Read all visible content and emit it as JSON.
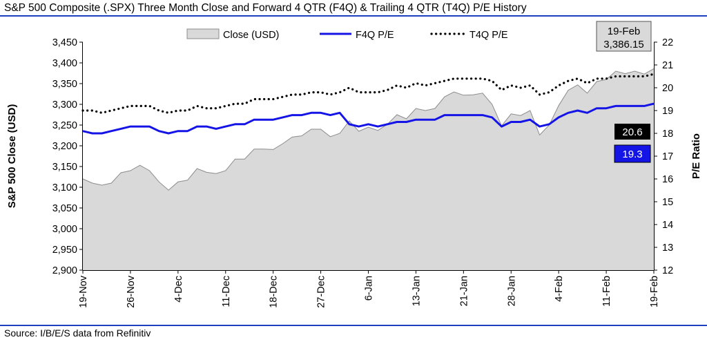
{
  "title": "S&P 500 Composite (.SPX) Three Month Close and Forward 4 QTR (F4Q) & Trailing 4 QTR (T4Q) P/E History",
  "source": "Source: I/B/E/S data from Refinitiv",
  "colors": {
    "rule": "#1c3fbf",
    "f4q": "#1414e6",
    "area_fill": "#d9d9d9",
    "area_line": "#8c8c8c",
    "t4q": "#000000",
    "f4q_box": "#1414e6",
    "t4q_box": "#000000"
  },
  "chart_data": {
    "type": "area",
    "ylabel": "S&P 500 Close (USD)",
    "y2label": "P/E Ratio",
    "ylim": [
      2900,
      3450
    ],
    "y2lim": [
      12,
      22
    ],
    "yticks": [
      "2,900",
      "2,950",
      "3,000",
      "3,050",
      "3,100",
      "3,150",
      "3,200",
      "3,250",
      "3,300",
      "3,350",
      "3,400",
      "3,450"
    ],
    "y2ticks": [
      "12",
      "13",
      "14",
      "15",
      "16",
      "17",
      "18",
      "19",
      "20",
      "21",
      "22"
    ],
    "xticks": [
      "19-Nov",
      "26-Nov",
      "4-Dec",
      "11-Dec",
      "18-Dec",
      "27-Dec",
      "6-Jan",
      "13-Jan",
      "21-Jan",
      "28-Jan",
      "4-Feb",
      "11-Feb",
      "19-Feb"
    ],
    "legend": [
      "Close (USD)",
      "F4Q P/E",
      "T4Q P/E"
    ],
    "latest_label": {
      "date": "19-Feb",
      "value": "3,386.15"
    },
    "t4q_label": "20.6",
    "f4q_label": "19.3",
    "series": [
      {
        "name": "Close (USD)",
        "values": [
          3120,
          3110,
          3105,
          3110,
          3135,
          3140,
          3153,
          3140,
          3113,
          3093,
          3113,
          3117,
          3145,
          3136,
          3133,
          3140,
          3168,
          3168,
          3192,
          3192,
          3191,
          3205,
          3221,
          3224,
          3240,
          3240,
          3222,
          3230,
          3260,
          3235,
          3245,
          3237,
          3252,
          3275,
          3265,
          3290,
          3285,
          3290,
          3318,
          3330,
          3322,
          3323,
          3327,
          3300,
          3248,
          3277,
          3273,
          3285,
          3226,
          3250,
          3297,
          3334,
          3347,
          3327,
          3355,
          3360,
          3380,
          3374,
          3380,
          3373,
          3386
        ]
      },
      {
        "name": "F4Q P/E",
        "values": [
          18.1,
          18.0,
          18.0,
          18.1,
          18.2,
          18.3,
          18.3,
          18.3,
          18.1,
          18.0,
          18.1,
          18.1,
          18.3,
          18.3,
          18.2,
          18.3,
          18.4,
          18.4,
          18.6,
          18.6,
          18.6,
          18.7,
          18.8,
          18.8,
          18.9,
          18.9,
          18.8,
          18.9,
          18.4,
          18.3,
          18.4,
          18.3,
          18.4,
          18.5,
          18.5,
          18.6,
          18.6,
          18.6,
          18.8,
          18.8,
          18.8,
          18.8,
          18.8,
          18.7,
          18.3,
          18.5,
          18.5,
          18.6,
          18.3,
          18.4,
          18.7,
          18.9,
          19.0,
          18.9,
          19.1,
          19.1,
          19.2,
          19.2,
          19.2,
          19.2,
          19.3
        ]
      },
      {
        "name": "T4Q P/E",
        "values": [
          19.0,
          19.0,
          18.9,
          19.0,
          19.1,
          19.2,
          19.2,
          19.2,
          19.0,
          18.9,
          19.0,
          19.0,
          19.2,
          19.1,
          19.1,
          19.2,
          19.3,
          19.3,
          19.5,
          19.5,
          19.5,
          19.6,
          19.7,
          19.7,
          19.8,
          19.8,
          19.7,
          19.8,
          20.0,
          19.8,
          19.8,
          19.8,
          19.9,
          20.1,
          20.0,
          20.2,
          20.1,
          20.2,
          20.3,
          20.4,
          20.4,
          20.4,
          20.4,
          20.3,
          19.9,
          20.1,
          20.0,
          20.1,
          19.7,
          19.8,
          20.1,
          20.3,
          20.4,
          20.2,
          20.4,
          20.4,
          20.5,
          20.5,
          20.5,
          20.5,
          20.6
        ]
      }
    ]
  }
}
